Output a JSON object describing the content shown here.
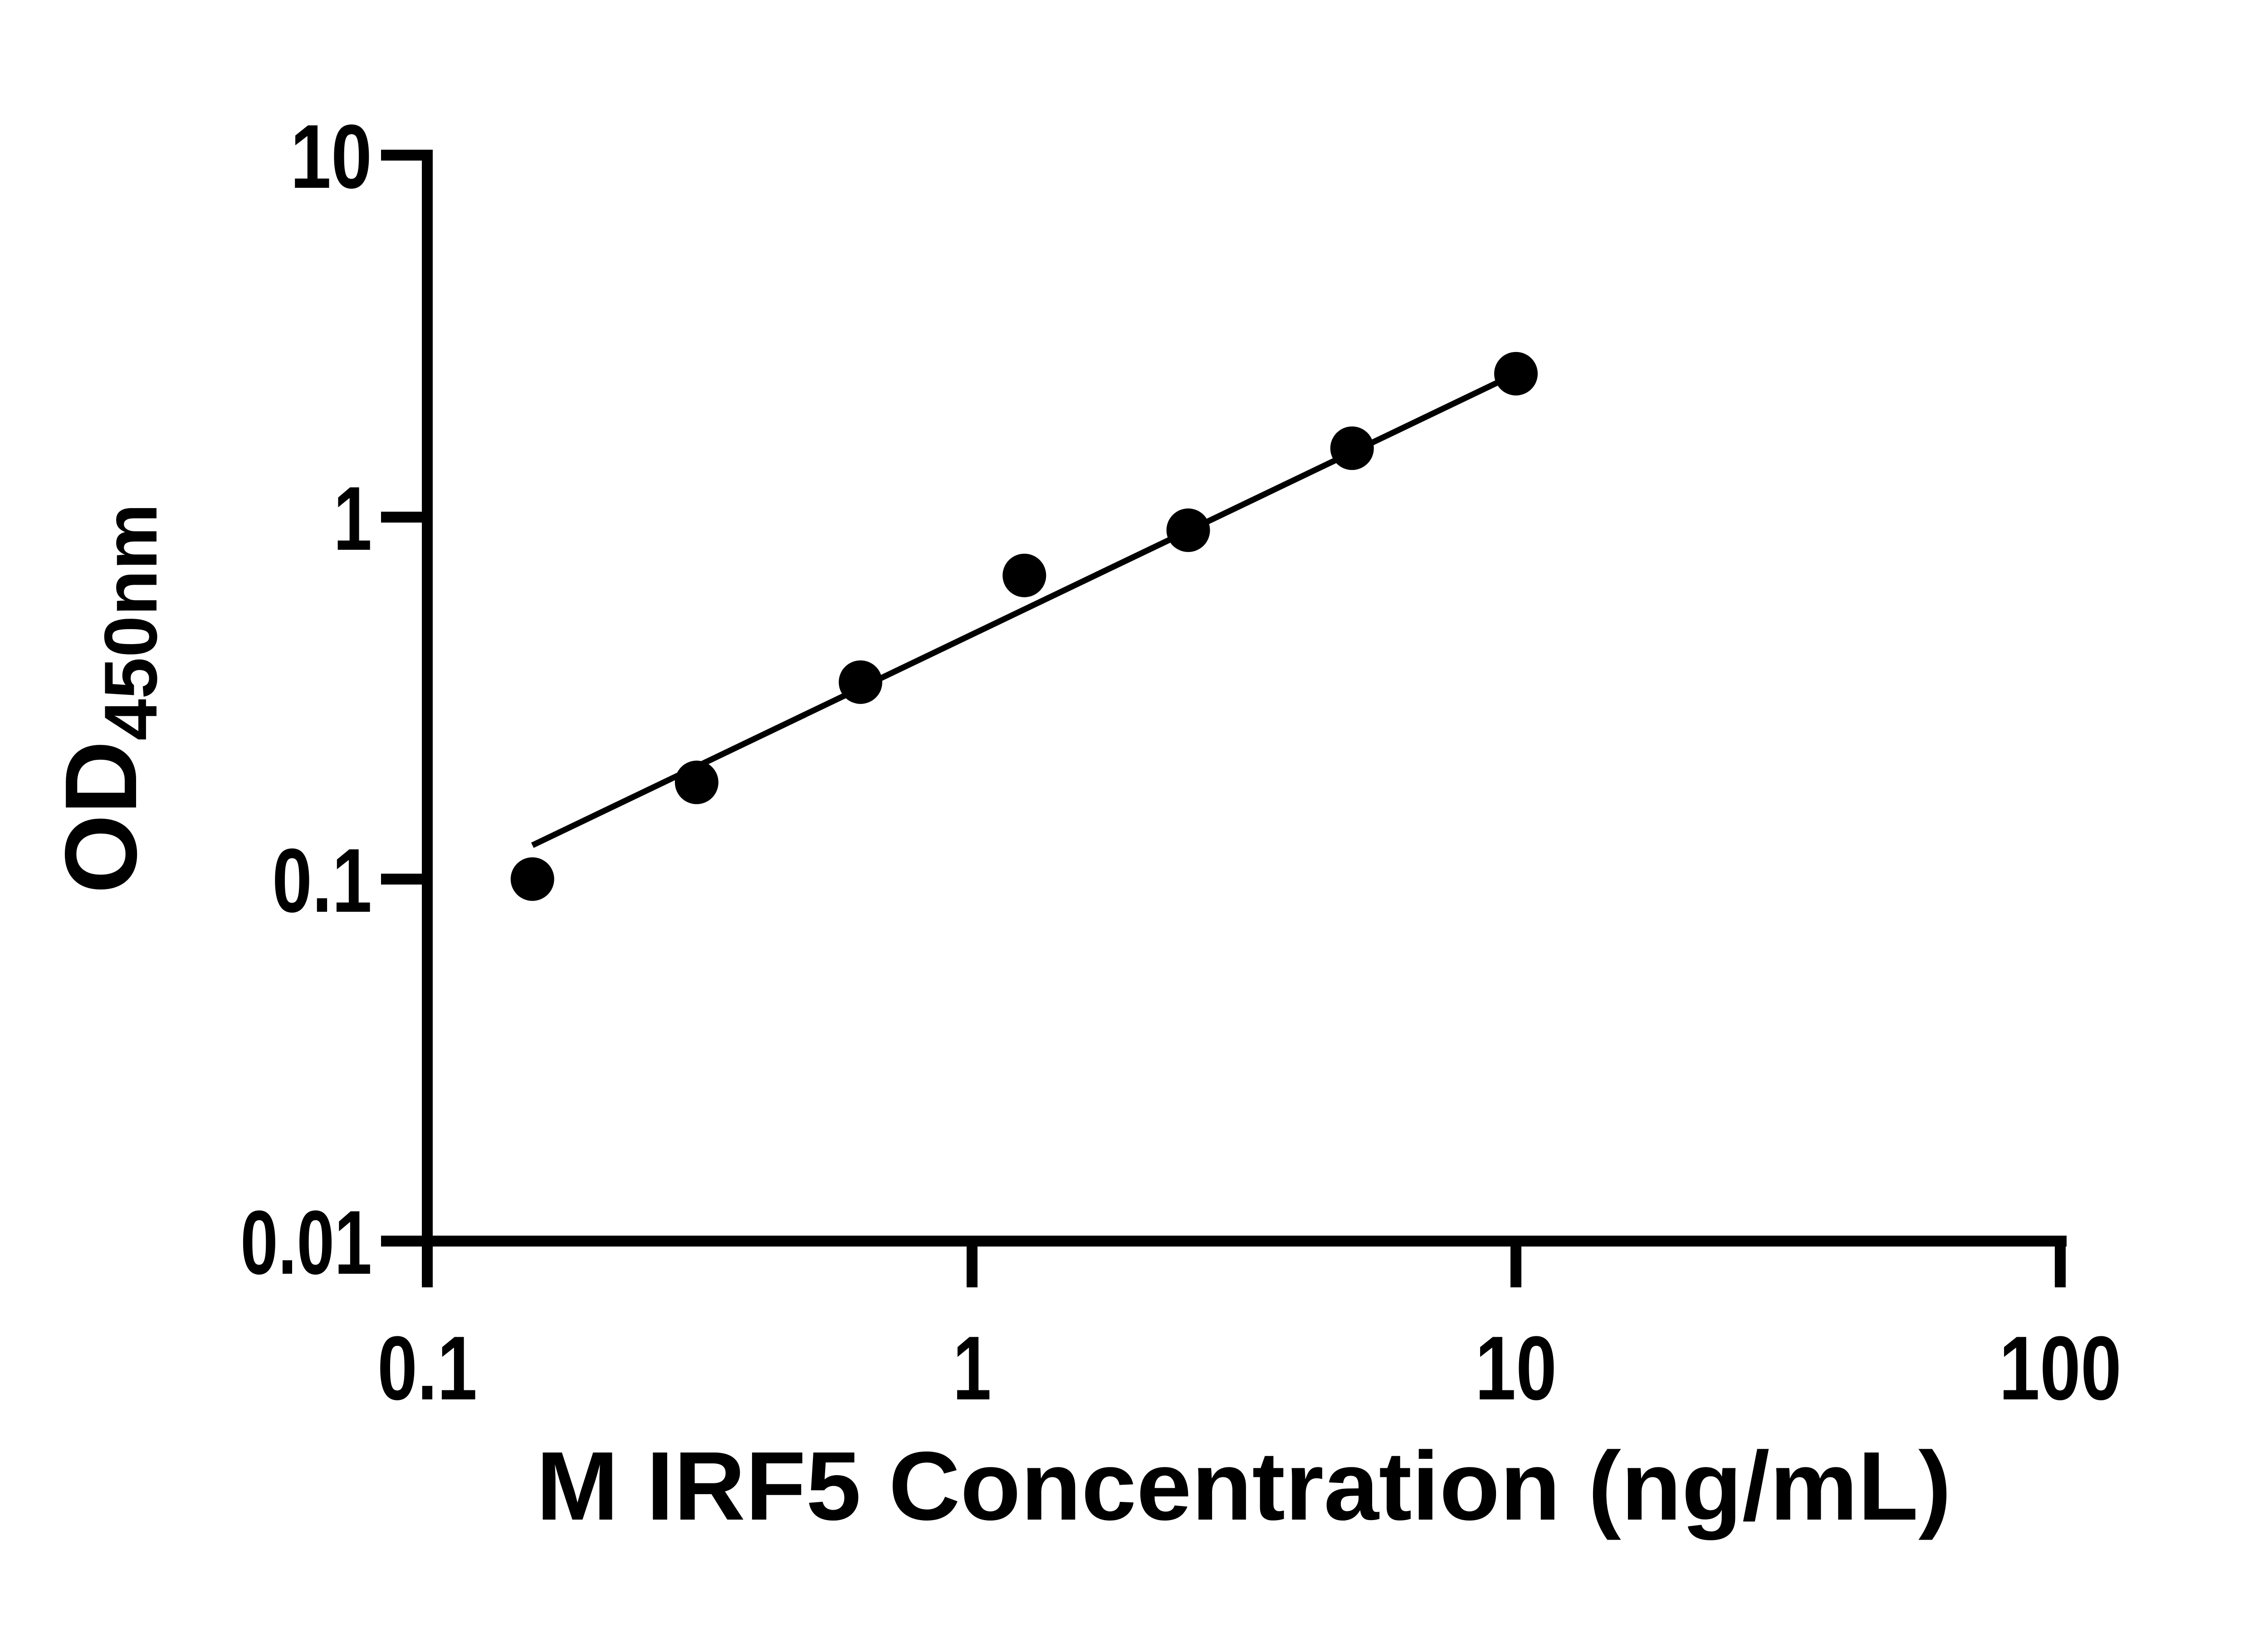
{
  "y_axis": {
    "label_main": "OD",
    "label_subscript": "450nm",
    "tick_labels": [
      "10",
      "1",
      "0.1",
      "0.01"
    ]
  },
  "x_axis": {
    "label": "M IRF5 Concentration (ng/mL)",
    "tick_labels": [
      "0.1",
      "1",
      "10",
      "100"
    ]
  },
  "chart_data": {
    "type": "scatter",
    "x": [
      0.156,
      0.3125,
      0.625,
      1.25,
      2.5,
      5,
      10
    ],
    "y": [
      0.1,
      0.185,
      0.35,
      0.69,
      0.92,
      1.55,
      2.49
    ],
    "title": "",
    "xlabel": "M IRF5 Concentration (ng/mL)",
    "ylabel": "OD450nm",
    "xscale": "log",
    "yscale": "log",
    "xlim": [
      0.1,
      100
    ],
    "ylim": [
      0.01,
      10
    ],
    "x_ticks": [
      0.1,
      1,
      10,
      100
    ],
    "y_ticks": [
      0.01,
      0.1,
      1,
      10
    ],
    "grid": false,
    "legend": false,
    "marker": "filled-circle",
    "marker_color": "#000000",
    "line_color": "#000000",
    "trend_line": {
      "x1": 0.156,
      "y1": 0.124,
      "x2": 10,
      "y2": 2.49
    }
  }
}
